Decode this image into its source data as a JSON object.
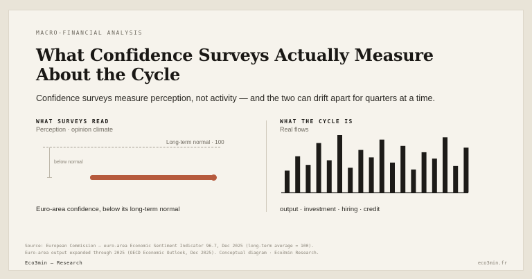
{
  "eyebrow": "MACRO-FINANCIAL ANALYSIS",
  "title": "What Confidence Surveys Actually Measure About the Cycle",
  "subtitle": "Confidence surveys measure perception, not activity — and the two can drift apart for quarters at a time.",
  "left_panel": {
    "title": "WHAT SURVEYS READ",
    "subtitle": "Perception · opinion climate",
    "norm_label": "Long-term normal · 100",
    "below_label": "below normal",
    "caption": "Euro-area confidence, below its long-term normal",
    "confidence_value": 96.7,
    "normal_value": 100,
    "colors": {
      "bar": "#b65a3d",
      "norm": "#a39d91"
    }
  },
  "right_panel": {
    "title": "WHAT THE CYCLE IS",
    "subtitle": "Real flows",
    "caption": "output · investment · hiring · credit",
    "bar_levels": [
      0.38,
      0.63,
      0.48,
      0.86,
      0.56,
      1.0,
      0.43,
      0.74,
      0.61,
      0.92,
      0.52,
      0.81,
      0.4,
      0.7,
      0.59,
      0.96,
      0.46,
      0.78
    ],
    "colors": {
      "bar": "#1d1b18",
      "axis": "#1d1b18"
    }
  },
  "footnote": {
    "line1": "Source: European Commission — euro-area Economic Sentiment Indicator 96.7, Dec 2025 (long-term average = 100).",
    "line2": "Euro-area output expanded through 2025 (OECD Economic Outlook, Dec 2025). Conceptual diagram · Eco3min Research."
  },
  "brand": "Eco3min — Research",
  "site": "eco3min.fr"
}
